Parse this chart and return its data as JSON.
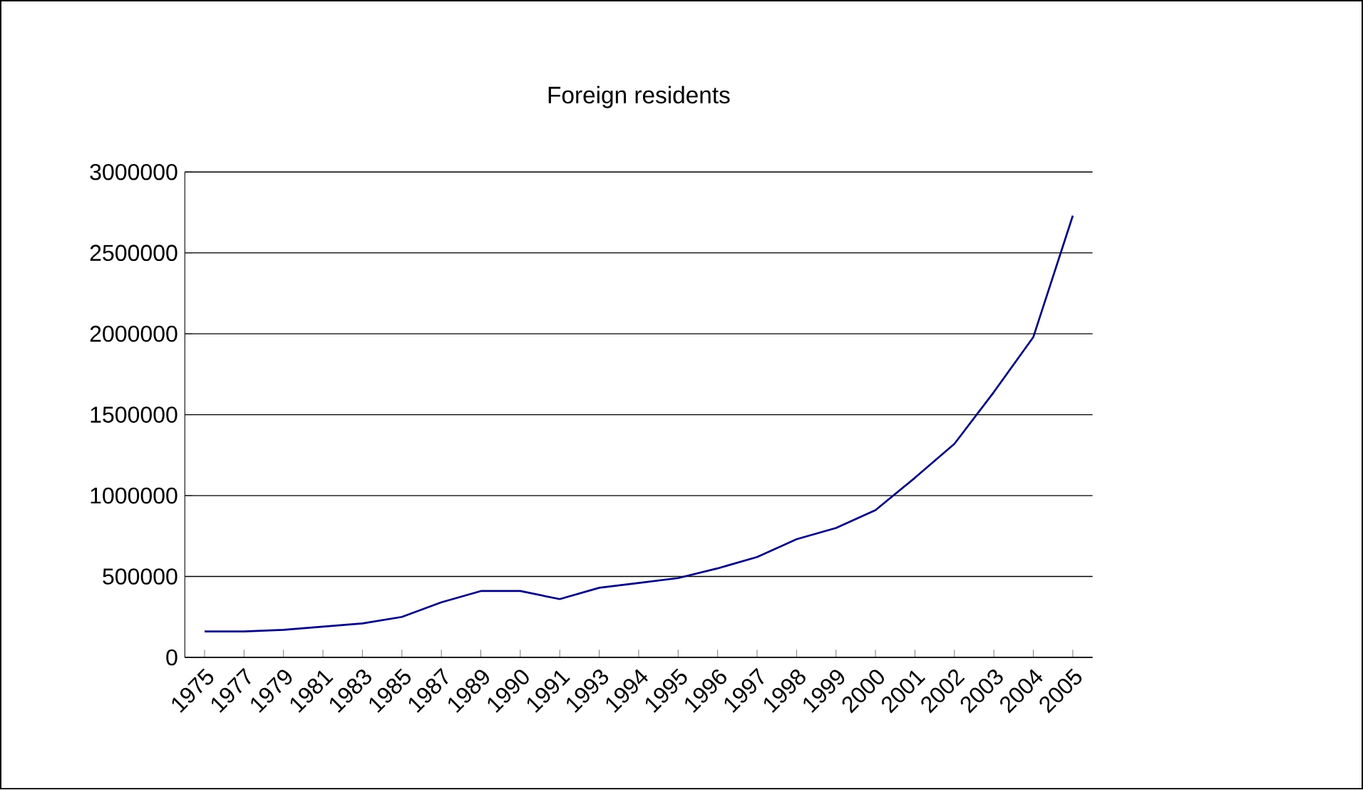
{
  "chart_data": {
    "type": "line",
    "title": "Foreign residents",
    "categories": [
      "1975",
      "1977",
      "1979",
      "1981",
      "1983",
      "1985",
      "1987",
      "1989",
      "1990",
      "1991",
      "1993",
      "1994",
      "1995",
      "1996",
      "1997",
      "1998",
      "1999",
      "2000",
      "2001",
      "2002",
      "2003",
      "2004",
      "2005"
    ],
    "series": [
      {
        "color": "#000080",
        "values": [
          160000,
          160000,
          170000,
          190000,
          210000,
          250000,
          340000,
          410000,
          410000,
          360000,
          430000,
          460000,
          490000,
          550000,
          620000,
          730000,
          800000,
          910000,
          1110000,
          1320000,
          1640000,
          1980000,
          2730000
        ]
      }
    ],
    "ylim": [
      0,
      3000000
    ],
    "yticks": [
      0,
      500000,
      1000000,
      1500000,
      2000000,
      2500000,
      3000000
    ],
    "grid": "y",
    "marker": "none",
    "line_style": "solid"
  }
}
